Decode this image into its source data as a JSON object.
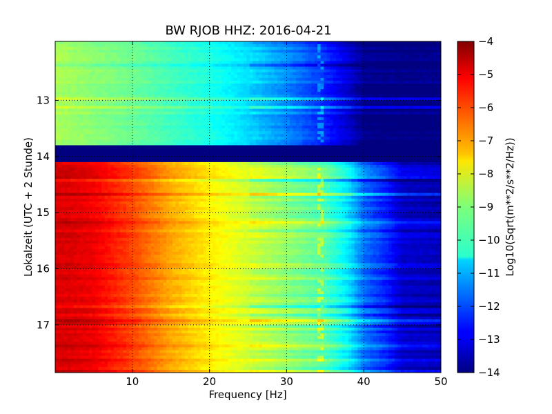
{
  "chart_data": {
    "type": "heatmap",
    "title": "BW RJOB HHZ: 2016-04-21",
    "xlabel": "Frequency [Hz]",
    "ylabel": "Lokalzeit (UTC + 2 Stunde)",
    "xlim": [
      0,
      50
    ],
    "ylim": [
      11.95,
      17.85
    ],
    "y_inverted": true,
    "grid": true,
    "colormap": "jet",
    "x_ticks": [
      10,
      20,
      30,
      40,
      50
    ],
    "y_ticks": [
      13,
      14,
      15,
      16,
      17
    ],
    "colorbar": {
      "label": "Log10(Sqrt(m**2/s**2/Hz))",
      "range": [
        -14,
        -4
      ],
      "ticks": [
        -4,
        -5,
        -6,
        -7,
        -8,
        -9,
        -10,
        -11,
        -12,
        -13,
        -14
      ]
    },
    "gap": {
      "from_hour": 13.82,
      "to_hour": 14.08,
      "value": -14
    },
    "level_profile": {
      "frequency_hz": [
        0,
        2,
        5,
        10,
        15,
        20,
        25,
        30,
        35,
        38,
        40,
        43,
        45,
        50
      ],
      "upper_segment_log10": [
        -8.6,
        -8.7,
        -8.9,
        -9.2,
        -9.6,
        -10.0,
        -10.6,
        -11.4,
        -12.4,
        -13.2,
        -13.9,
        -14,
        -14,
        -14
      ],
      "lower_segment_log10": [
        -4.9,
        -4.9,
        -5.1,
        -5.9,
        -6.9,
        -7.6,
        -8.2,
        -8.8,
        -9.4,
        -10.4,
        -11.6,
        -12.4,
        -13.2,
        -13.4
      ]
    },
    "ridge_frequency_hz": 34.5
  }
}
